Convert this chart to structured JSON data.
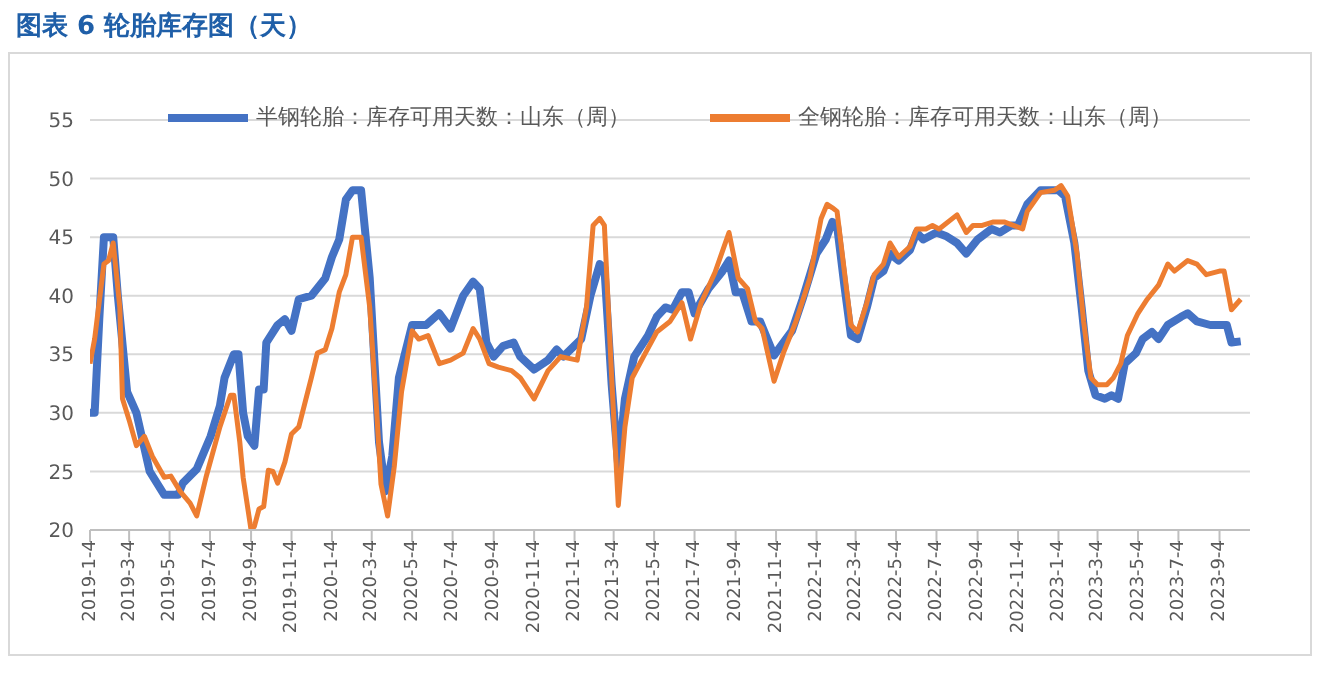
{
  "chart_data": {
    "type": "line",
    "title": "图表 6 轮胎库存图（天）",
    "xlim": [
      "2019-01-04",
      "2023-10-20"
    ],
    "xticks": [
      {
        "value": "2019-01-04",
        "label": "2019-1-4"
      },
      {
        "value": "2019-03-04",
        "label": "2019-3-4"
      },
      {
        "value": "2019-05-04",
        "label": "2019-5-4"
      },
      {
        "value": "2019-07-04",
        "label": "2019-7-4"
      },
      {
        "value": "2019-09-04",
        "label": "2019-9-4"
      },
      {
        "value": "2019-11-04",
        "label": "2019-11-4"
      },
      {
        "value": "2020-01-04",
        "label": "2020-1-4"
      },
      {
        "value": "2020-03-04",
        "label": "2020-3-4"
      },
      {
        "value": "2020-05-04",
        "label": "2020-5-4"
      },
      {
        "value": "2020-07-04",
        "label": "2020-7-4"
      },
      {
        "value": "2020-09-04",
        "label": "2020-9-4"
      },
      {
        "value": "2020-11-04",
        "label": "2020-11-4"
      },
      {
        "value": "2021-01-04",
        "label": "2021-1-4"
      },
      {
        "value": "2021-03-04",
        "label": "2021-3-4"
      },
      {
        "value": "2021-05-04",
        "label": "2021-5-4"
      },
      {
        "value": "2021-07-04",
        "label": "2021-7-4"
      },
      {
        "value": "2021-09-04",
        "label": "2021-9-4"
      },
      {
        "value": "2021-11-04",
        "label": "2021-11-4"
      },
      {
        "value": "2022-01-04",
        "label": "2022-1-4"
      },
      {
        "value": "2022-03-04",
        "label": "2022-3-4"
      },
      {
        "value": "2022-05-04",
        "label": "2022-5-4"
      },
      {
        "value": "2022-07-04",
        "label": "2022-7-4"
      },
      {
        "value": "2022-09-04",
        "label": "2022-9-4"
      },
      {
        "value": "2022-11-04",
        "label": "2022-11-4"
      },
      {
        "value": "2023-01-04",
        "label": "2023-1-4"
      },
      {
        "value": "2023-03-04",
        "label": "2023-3-4"
      },
      {
        "value": "2023-05-04",
        "label": "2023-5-4"
      },
      {
        "value": "2023-07-04",
        "label": "2023-7-4"
      },
      {
        "value": "2023-09-04",
        "label": "2023-9-4"
      }
    ],
    "ylim": [
      20,
      55
    ],
    "yticks": [
      20,
      25,
      30,
      35,
      40,
      45,
      50,
      55
    ],
    "grid": "y",
    "legend": "top",
    "marker": "none",
    "line_style": "solid",
    "series": [
      {
        "name": "半钢轮胎：库存可用天数：山东（周）",
        "color": "#4472c4",
        "x": [
          "2019-01-04",
          "2019-01-11",
          "2019-01-18",
          "2019-01-25",
          "2019-02-08",
          "2019-02-15",
          "2019-03-01",
          "2019-03-15",
          "2019-04-04",
          "2019-04-26",
          "2019-05-17",
          "2019-05-24",
          "2019-06-14",
          "2019-07-05",
          "2019-07-19",
          "2019-07-26",
          "2019-08-09",
          "2019-08-16",
          "2019-08-23",
          "2019-08-30",
          "2019-09-09",
          "2019-09-16",
          "2019-09-23",
          "2019-09-27",
          "2019-10-14",
          "2019-10-25",
          "2019-11-04",
          "2019-11-15",
          "2019-12-04",
          "2019-12-25",
          "2020-01-04",
          "2020-01-15",
          "2020-01-25",
          "2020-02-04",
          "2020-02-17",
          "2020-03-01",
          "2020-03-15",
          "2020-03-25",
          "2020-04-04",
          "2020-04-14",
          "2020-05-04",
          "2020-05-25",
          "2020-06-14",
          "2020-07-01",
          "2020-07-20",
          "2020-08-04",
          "2020-08-14",
          "2020-08-24",
          "2020-09-04",
          "2020-09-18",
          "2020-10-04",
          "2020-10-14",
          "2020-11-04",
          "2020-11-25",
          "2020-12-08",
          "2020-12-18",
          "2021-01-14",
          "2021-01-28",
          "2021-02-11",
          "2021-02-18",
          "2021-03-01",
          "2021-03-11",
          "2021-03-21",
          "2021-04-04",
          "2021-04-25",
          "2021-05-08",
          "2021-05-21",
          "2021-06-01",
          "2021-06-15",
          "2021-06-25",
          "2021-07-04",
          "2021-07-25",
          "2021-08-14",
          "2021-08-25",
          "2021-09-04",
          "2021-09-14",
          "2021-09-28",
          "2021-10-11",
          "2021-11-01",
          "2021-11-15",
          "2021-11-28",
          "2021-12-14",
          "2022-01-04",
          "2022-01-18",
          "2022-01-28",
          "2022-02-04",
          "2022-02-15",
          "2022-02-25",
          "2022-03-07",
          "2022-03-21",
          "2022-04-01",
          "2022-04-15",
          "2022-04-25",
          "2022-05-08",
          "2022-05-25",
          "2022-06-04",
          "2022-06-14",
          "2022-07-04",
          "2022-07-18",
          "2022-08-04",
          "2022-08-18",
          "2022-09-04",
          "2022-09-25",
          "2022-10-08",
          "2022-10-25",
          "2022-11-04",
          "2022-11-18",
          "2022-12-08",
          "2022-12-22",
          "2023-01-04",
          "2023-01-14",
          "2023-01-28",
          "2023-02-08",
          "2023-02-18",
          "2023-03-01",
          "2023-03-15",
          "2023-03-25",
          "2023-04-04",
          "2023-04-14",
          "2023-05-01",
          "2023-05-11",
          "2023-05-25",
          "2023-06-04",
          "2023-06-18",
          "2023-07-08",
          "2023-07-18",
          "2023-08-01",
          "2023-08-21",
          "2023-09-08",
          "2023-09-15",
          "2023-09-22",
          "2023-10-06"
        ],
        "values": [
          30,
          30,
          38,
          45,
          45,
          40,
          31.8,
          30,
          25,
          23,
          23,
          24,
          25.2,
          28,
          30.6,
          33,
          35,
          35,
          30,
          28,
          27.2,
          32,
          32,
          36,
          37.5,
          38,
          37,
          39.7,
          40,
          41.5,
          43.3,
          44.8,
          48.2,
          49,
          49,
          41.5,
          27.5,
          23.3,
          26.3,
          33,
          37.5,
          37.5,
          38.5,
          37.2,
          40,
          41.2,
          40.6,
          36,
          34.8,
          35.7,
          36,
          34.8,
          33.7,
          34.5,
          35.4,
          34.8,
          36.3,
          40,
          42.7,
          42.4,
          32.4,
          25.4,
          31.2,
          34.8,
          36.6,
          38.2,
          39,
          38.8,
          40.3,
          40.3,
          38.5,
          40.6,
          42,
          43,
          40.3,
          40.3,
          37.8,
          37.8,
          34.9,
          36,
          37,
          39.7,
          43.6,
          44.8,
          46.3,
          46,
          40.9,
          36.6,
          36.3,
          39,
          41.5,
          42.1,
          43.6,
          43,
          43.9,
          45.4,
          44.8,
          45.4,
          45.1,
          44.5,
          43.6,
          44.8,
          45.7,
          45.4,
          46,
          46,
          47.8,
          49,
          49,
          49,
          48.5,
          44.5,
          39,
          33.6,
          31.5,
          31.2,
          31.5,
          31.2,
          34.2,
          35.1,
          36.3,
          36.9,
          36.3,
          37.5,
          38.2,
          38.5,
          37.8,
          37.5,
          37.5,
          37.5,
          36,
          36.1
        ]
      },
      {
        "name": "全钢轮胎：库存可用天数：山东（周）",
        "color": "#ed7d31",
        "x": [
          "2019-01-04",
          "2019-01-11",
          "2019-01-25",
          "2019-02-01",
          "2019-02-08",
          "2019-02-18",
          "2019-02-22",
          "2019-03-04",
          "2019-03-15",
          "2019-03-27",
          "2019-04-08",
          "2019-04-26",
          "2019-05-06",
          "2019-05-20",
          "2019-06-04",
          "2019-06-14",
          "2019-06-28",
          "2019-07-19",
          "2019-08-04",
          "2019-08-09",
          "2019-08-18",
          "2019-08-23",
          "2019-09-04",
          "2019-09-09",
          "2019-09-16",
          "2019-09-23",
          "2019-09-30",
          "2019-10-07",
          "2019-10-14",
          "2019-10-25",
          "2019-11-04",
          "2019-11-15",
          "2019-12-04",
          "2019-12-13",
          "2019-12-25",
          "2020-01-04",
          "2020-01-15",
          "2020-01-25",
          "2020-02-04",
          "2020-02-17",
          "2020-03-01",
          "2020-03-11",
          "2020-03-18",
          "2020-03-28",
          "2020-04-07",
          "2020-04-18",
          "2020-05-04",
          "2020-05-14",
          "2020-05-28",
          "2020-06-14",
          "2020-07-01",
          "2020-07-20",
          "2020-08-04",
          "2020-08-14",
          "2020-08-28",
          "2020-09-11",
          "2020-10-01",
          "2020-10-14",
          "2020-11-04",
          "2020-11-25",
          "2020-12-14",
          "2021-01-08",
          "2021-01-22",
          "2021-02-01",
          "2021-02-11",
          "2021-02-18",
          "2021-03-01",
          "2021-03-11",
          "2021-03-21",
          "2021-04-01",
          "2021-04-18",
          "2021-05-08",
          "2021-05-28",
          "2021-06-15",
          "2021-06-28",
          "2021-07-14",
          "2021-08-04",
          "2021-08-25",
          "2021-09-08",
          "2021-09-22",
          "2021-10-04",
          "2021-10-14",
          "2021-11-01",
          "2021-11-15",
          "2021-12-04",
          "2021-12-25",
          "2022-01-11",
          "2022-01-20",
          "2022-01-28",
          "2022-02-04",
          "2022-02-15",
          "2022-02-25",
          "2022-03-07",
          "2022-03-21",
          "2022-04-01",
          "2022-04-15",
          "2022-04-25",
          "2022-05-08",
          "2022-05-25",
          "2022-06-04",
          "2022-06-18",
          "2022-06-28",
          "2022-07-08",
          "2022-08-04",
          "2022-08-18",
          "2022-08-28",
          "2022-09-11",
          "2022-09-28",
          "2022-10-14",
          "2022-10-28",
          "2022-11-11",
          "2022-11-18",
          "2022-12-08",
          "2022-12-29",
          "2023-01-08",
          "2023-01-18",
          "2023-02-01",
          "2023-02-11",
          "2023-02-22",
          "2023-03-04",
          "2023-03-18",
          "2023-03-28",
          "2023-04-08",
          "2023-04-18",
          "2023-05-04",
          "2023-05-18",
          "2023-06-04",
          "2023-06-18",
          "2023-06-28",
          "2023-07-18",
          "2023-08-01",
          "2023-08-15",
          "2023-09-04",
          "2023-09-11",
          "2023-09-22",
          "2023-10-06"
        ],
        "values": [
          34.2,
          36.3,
          42.7,
          43,
          44.5,
          39,
          31.2,
          29.4,
          27.2,
          28,
          26.3,
          24.5,
          24.6,
          23.3,
          22.3,
          21.2,
          24.5,
          28.8,
          31.5,
          31.5,
          27.5,
          24.5,
          20,
          20.3,
          21.8,
          22,
          25.1,
          25,
          24,
          25.8,
          28.2,
          28.8,
          33,
          35.1,
          35.4,
          37.2,
          40.3,
          41.8,
          45,
          45,
          39,
          30.6,
          23.9,
          21.2,
          25.4,
          31.8,
          37,
          36.3,
          36.6,
          34.2,
          34.5,
          35.1,
          37.2,
          36.3,
          34.2,
          33.9,
          33.6,
          33,
          31.2,
          33.6,
          34.8,
          34.5,
          39,
          46,
          46.6,
          46,
          33,
          22.1,
          28.8,
          33,
          34.8,
          36.9,
          37.8,
          39.4,
          36.3,
          39.4,
          42,
          45.4,
          41.5,
          40.6,
          37.8,
          37.2,
          32.7,
          35.1,
          37.8,
          41.5,
          46.6,
          47.8,
          47.5,
          47.2,
          42.1,
          37.5,
          36.9,
          39.4,
          41.8,
          42.7,
          44.5,
          43.3,
          44.2,
          45.7,
          45.7,
          46,
          45.7,
          46.9,
          45.4,
          46,
          46,
          46.3,
          46.3,
          46,
          45.7,
          47.2,
          48.8,
          49,
          49.4,
          48.5,
          43.6,
          37.8,
          33,
          32.4,
          32.4,
          33,
          34.2,
          36.6,
          38.5,
          39.7,
          40.9,
          42.7,
          42.1,
          43,
          42.7,
          41.8,
          42.1,
          42.1,
          38.8,
          39.7
        ]
      }
    ]
  }
}
